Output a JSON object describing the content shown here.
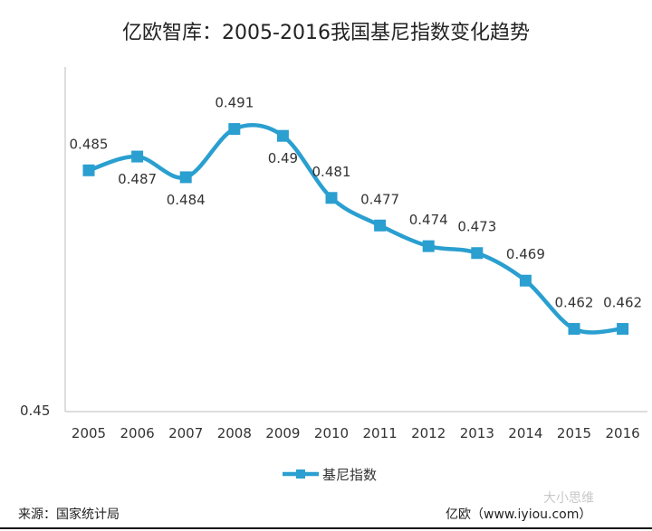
{
  "chart_data": {
    "type": "line",
    "title": "亿欧智库：2005-2016我国基尼指数变化趋势",
    "categories": [
      "2005",
      "2006",
      "2007",
      "2008",
      "2009",
      "2010",
      "2011",
      "2012",
      "2013",
      "2014",
      "2015",
      "2016"
    ],
    "series": [
      {
        "name": "基尼指数",
        "values": [
          0.485,
          0.487,
          0.484,
          0.491,
          0.49,
          0.481,
          0.477,
          0.474,
          0.473,
          0.469,
          0.462,
          0.462
        ],
        "labels": [
          "0.485",
          "0.487",
          "0.484",
          "0.491",
          "0.49",
          "0.481",
          "0.477",
          "0.474",
          "0.473",
          "0.469",
          "0.462",
          "0.462"
        ]
      }
    ],
    "ylim": [
      0.45,
      0.5
    ],
    "yticks": [
      "0.45"
    ],
    "xlabel": "",
    "ylabel": "",
    "grid": false,
    "smooth": true,
    "marker": "square",
    "legend_position": "bottom",
    "color": "#2a9fd0"
  },
  "footer": {
    "source": "来源：国家统计局",
    "credit": "亿欧（www.iyiou.com）",
    "watermark": "大小思维"
  }
}
